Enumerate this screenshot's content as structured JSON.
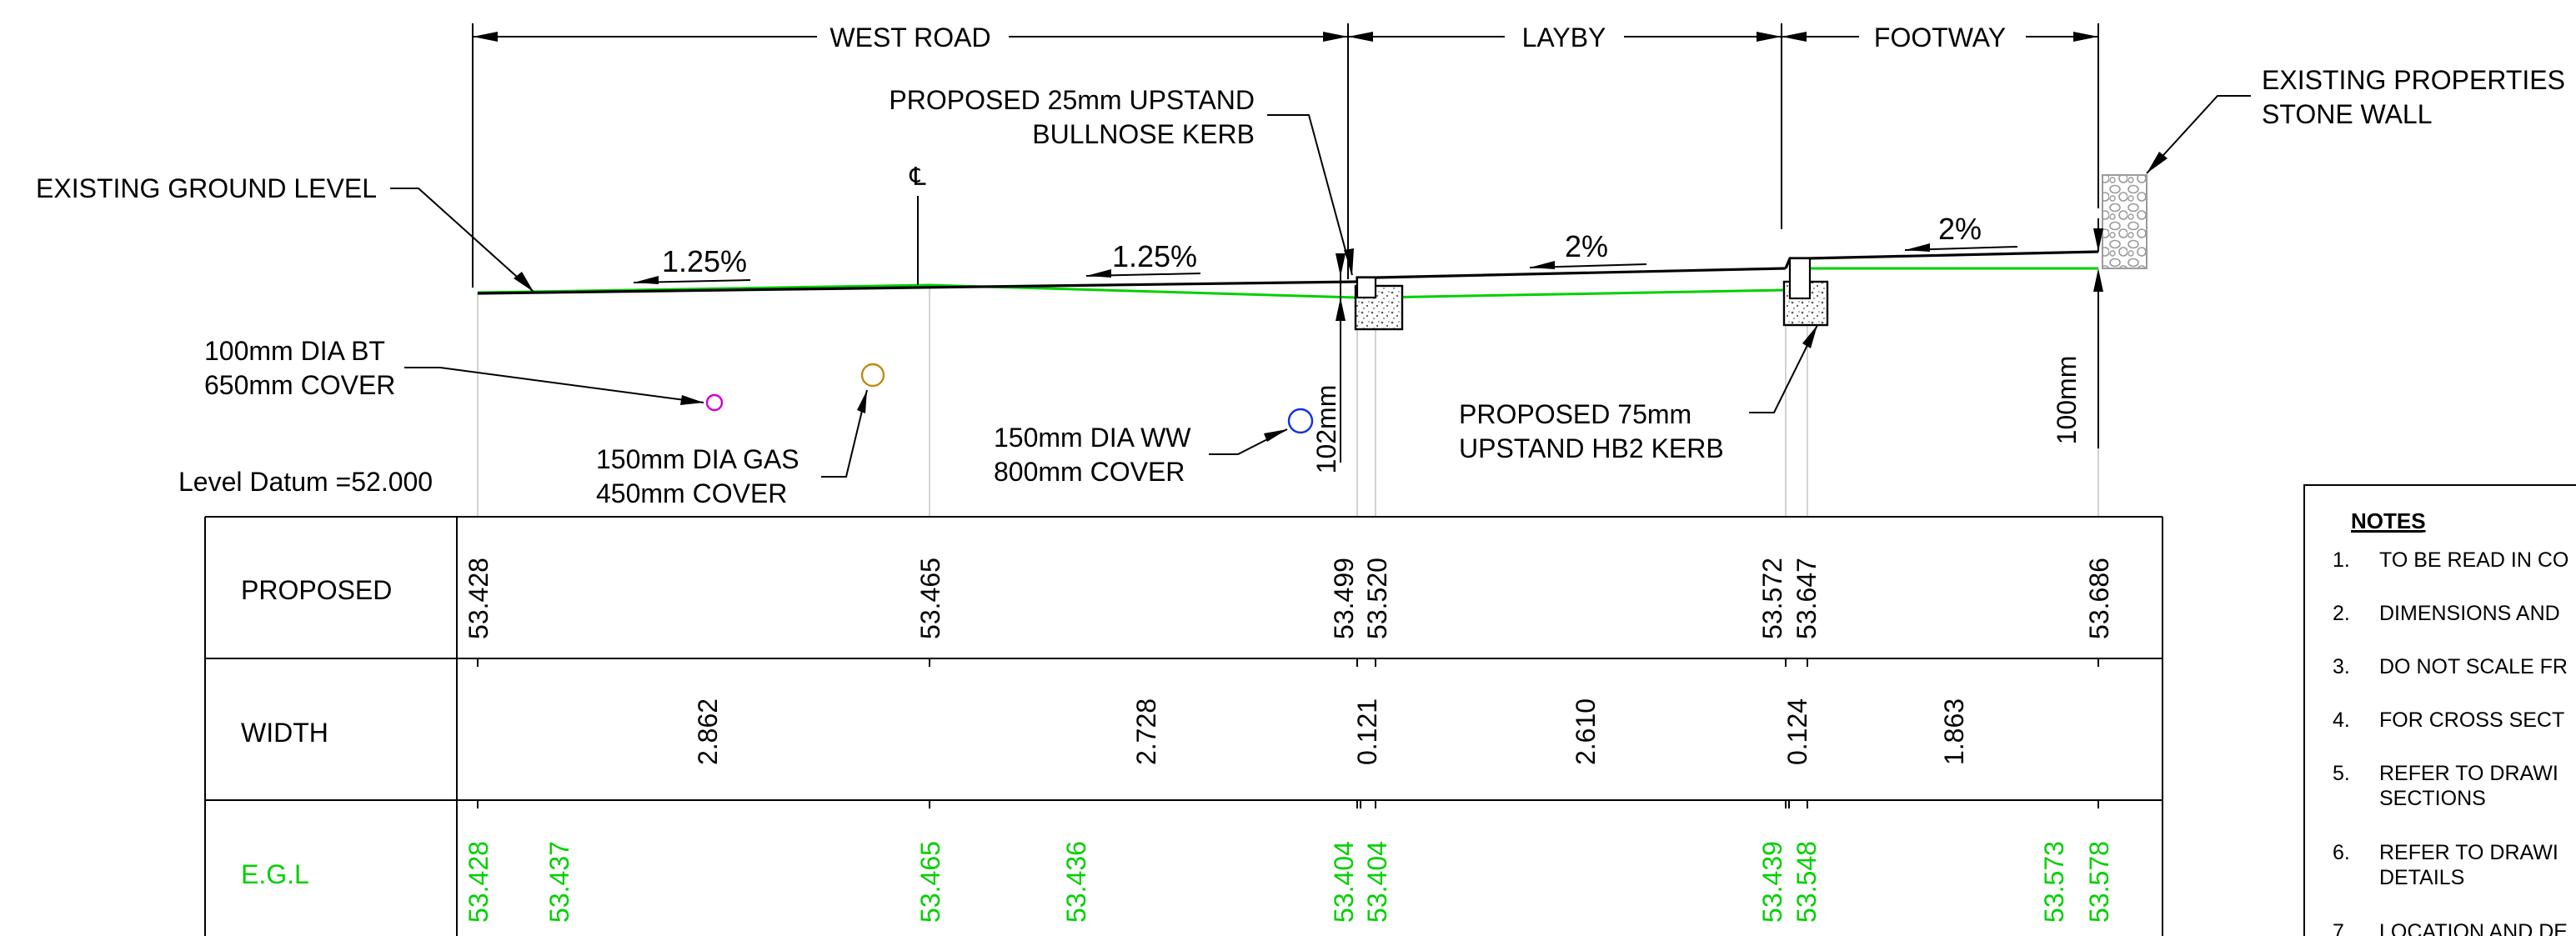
{
  "dimensions": {
    "west_road": "WEST ROAD",
    "layby": "LAYBY",
    "footway": "FOOTWAY"
  },
  "callouts": {
    "existing_ground_level": "EXISTING GROUND LEVEL",
    "bullnose_kerb_line1": "PROPOSED 25mm UPSTAND",
    "bullnose_kerb_line2": "BULLNOSE KERB",
    "stone_wall_line1": "EXISTING PROPERTIES",
    "stone_wall_line2": "STONE WALL",
    "hb2_kerb_line1": "PROPOSED 75mm",
    "hb2_kerb_line2": "UPSTAND HB2 KERB",
    "centreline": "℄",
    "bt_line1": "100mm DIA BT",
    "bt_line2": "650mm COVER",
    "gas_line1": "150mm DIA GAS",
    "gas_line2": "450mm COVER",
    "ww_line1": "150mm DIA WW",
    "ww_line2": "800mm COVER",
    "upstand_102": "102mm",
    "upstand_100": "100mm",
    "level_datum": "Level Datum =52.000"
  },
  "gradients": [
    "1.25%",
    "1.25%",
    "2%",
    "2%"
  ],
  "table": {
    "rows": [
      "PROPOSED",
      "WIDTH",
      "E.G.L"
    ],
    "proposed_levels": [
      "53.428",
      "53.465",
      "53.499",
      "53.520",
      "53.572",
      "53.647",
      "53.686"
    ],
    "widths": [
      "2.862",
      "2.728",
      "0.121",
      "2.610",
      "0.124",
      "1.863"
    ],
    "egl_levels": [
      "53.428",
      "53.437",
      "53.465",
      "53.436",
      "53.404",
      "53.404",
      "53.439",
      "53.548",
      "53.573",
      "53.578"
    ]
  },
  "notes": {
    "heading": "NOTES",
    "items": [
      {
        "num": "1.",
        "line1": "TO BE READ IN CO",
        "line2": ""
      },
      {
        "num": "2.",
        "line1": "DIMENSIONS AND",
        "line2": ""
      },
      {
        "num": "3.",
        "line1": "DO NOT SCALE FR",
        "line2": ""
      },
      {
        "num": "4.",
        "line1": "FOR CROSS SECT",
        "line2": ""
      },
      {
        "num": "5.",
        "line1": "REFER TO DRAWI",
        "line2": "SECTIONS"
      },
      {
        "num": "6.",
        "line1": "REFER TO DRAWI",
        "line2": "DETAILS"
      },
      {
        "num": "7.",
        "line1": "LOCATION AND DE",
        "line2": ""
      }
    ]
  },
  "colors": {
    "line": "#000000",
    "existing_ground": "#00d000",
    "bt_duct": "#d000d0",
    "gas_pipe": "#c08a10",
    "ww_pipe": "#1030e0",
    "extension": "#c8c8c8"
  }
}
